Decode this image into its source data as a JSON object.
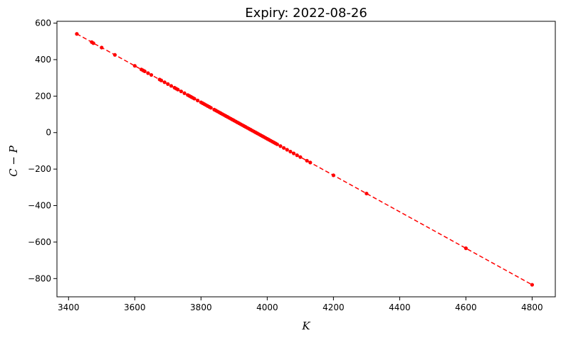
{
  "chart_data": {
    "type": "scatter",
    "title": "Expiry: 2022-08-26",
    "xlabel": "K",
    "ylabel": "C − P",
    "xlim": [
      3365,
      4870
    ],
    "ylim": [
      -900,
      610
    ],
    "x_ticks": [
      3400,
      3600,
      3800,
      4000,
      4200,
      4400,
      4600,
      4800
    ],
    "y_ticks": [
      600,
      400,
      200,
      0,
      -200,
      -400,
      -600,
      -800
    ],
    "grid": false,
    "legend": "none",
    "marker_color": "#ff0000",
    "line_style": "dashed",
    "series": [
      {
        "x": [
          3425,
          3470,
          3475,
          3500,
          3540,
          3600,
          3620,
          3625,
          3630,
          3640,
          3650,
          3675,
          3680,
          3690,
          3700,
          3710,
          3720,
          3725,
          3730,
          3740,
          3750,
          3760,
          3765,
          3770,
          3775,
          3780,
          3790,
          3800,
          3805,
          3810,
          3815,
          3820,
          3825,
          3830,
          3840,
          3845,
          3850,
          3855,
          3860,
          3865,
          3870,
          3875,
          3880,
          3885,
          3890,
          3895,
          3900,
          3905,
          3910,
          3915,
          3920,
          3925,
          3930,
          3935,
          3940,
          3945,
          3950,
          3955,
          3960,
          3965,
          3970,
          3975,
          3980,
          3985,
          3990,
          3995,
          4000,
          4005,
          4010,
          4015,
          4020,
          4025,
          4030,
          4040,
          4050,
          4060,
          4070,
          4080,
          4090,
          4100,
          4120,
          4130,
          4200,
          4300,
          4600,
          4800
        ],
        "y": [
          541,
          496,
          490,
          466,
          426,
          366,
          346,
          341,
          336,
          326,
          316,
          291,
          286,
          276,
          266,
          256,
          246,
          241,
          236,
          226,
          216,
          206,
          201,
          196,
          191,
          186,
          176,
          166,
          161,
          156,
          151,
          146,
          141,
          136,
          126,
          121,
          116,
          111,
          106,
          101,
          96,
          91,
          86,
          81,
          76,
          71,
          66,
          61,
          56,
          51,
          46,
          41,
          36,
          31,
          26,
          21,
          16,
          11,
          6,
          1,
          -4,
          -9,
          -14,
          -19,
          -24,
          -29,
          -34,
          -39,
          -44,
          -49,
          -54,
          -59,
          -64,
          -74,
          -84,
          -94,
          -104,
          -114,
          -124,
          -134,
          -154,
          -164,
          -234,
          -334,
          -634,
          -834
        ]
      }
    ]
  }
}
